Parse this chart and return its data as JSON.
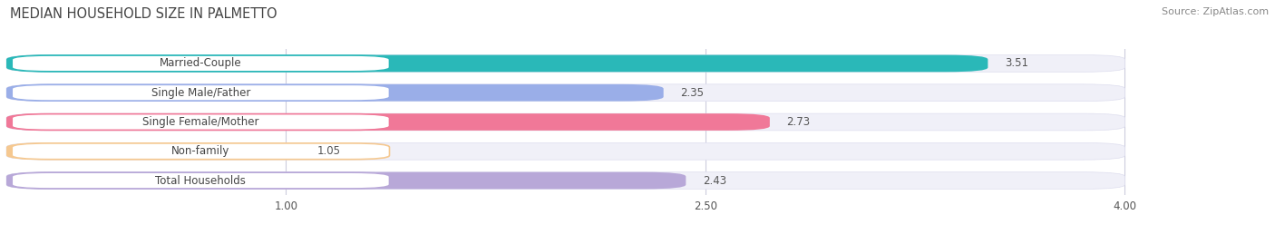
{
  "title": "MEDIAN HOUSEHOLD SIZE IN PALMETTO",
  "source": "Source: ZipAtlas.com",
  "categories": [
    "Married-Couple",
    "Single Male/Father",
    "Single Female/Mother",
    "Non-family",
    "Total Households"
  ],
  "values": [
    3.51,
    2.35,
    2.73,
    1.05,
    2.43
  ],
  "bar_colors": [
    "#2ab8b8",
    "#9aaee8",
    "#f07898",
    "#f5c890",
    "#b8a8d8"
  ],
  "label_pill_border_colors": [
    "#2ab8b8",
    "#9aaee8",
    "#f07898",
    "#f5c890",
    "#b8a8d8"
  ],
  "xlim_min": 0.0,
  "xlim_max": 4.4,
  "xaxis_min": 0.0,
  "xaxis_max": 4.0,
  "xticks": [
    1.0,
    2.5,
    4.0
  ],
  "title_fontsize": 10.5,
  "source_fontsize": 8,
  "label_fontsize": 8.5,
  "value_fontsize": 8.5,
  "background_color": "#ffffff",
  "bar_bg_color": "#f0f0f8",
  "bar_height": 0.58,
  "bar_gap": 0.42
}
